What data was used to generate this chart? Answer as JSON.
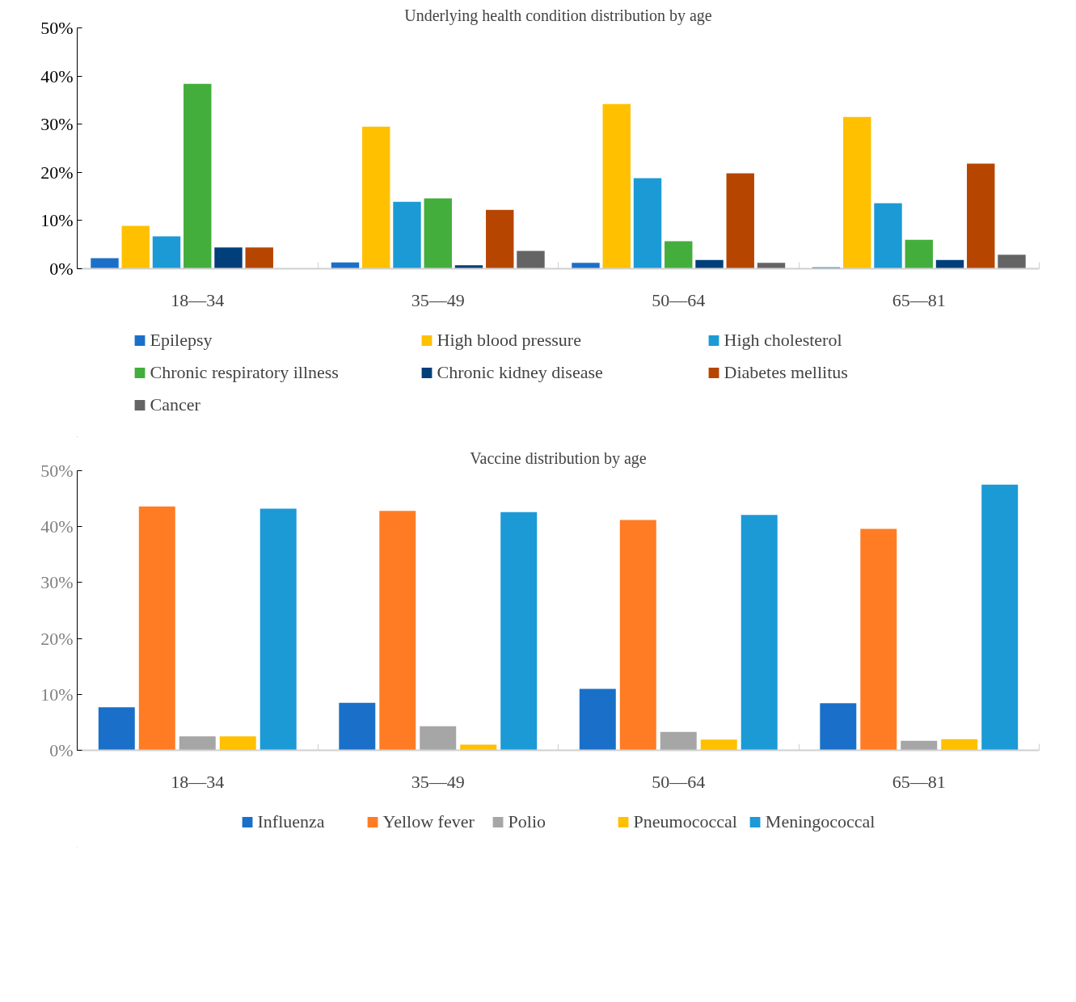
{
  "chart_data": [
    {
      "type": "bar",
      "title": "Underlying health condition distribution by age",
      "categories": [
        "18—34",
        "35—49",
        "50—64",
        "65—81"
      ],
      "ylim": [
        0,
        50
      ],
      "yticks": [
        {
          "value": 0,
          "label": "0%"
        },
        {
          "value": 10,
          "label": "10%"
        },
        {
          "value": 20,
          "label": "20%"
        },
        {
          "value": 30,
          "label": "30%"
        },
        {
          "value": 40,
          "label": "40%"
        },
        {
          "value": 50,
          "label": "50%"
        }
      ],
      "grid": false,
      "legend": "bottom",
      "series": [
        {
          "name": "Epilepsy",
          "color": "#1a70c8",
          "values": [
            2.2,
            1.3,
            1.2,
            0.3
          ]
        },
        {
          "name": "High blood pressure",
          "color": "#ffc000",
          "values": [
            8.9,
            29.5,
            34.2,
            31.5
          ]
        },
        {
          "name": "High cholesterol",
          "color": "#1b9ad6",
          "values": [
            6.7,
            13.9,
            18.8,
            13.6
          ]
        },
        {
          "name": "Chronic respiratory illness",
          "color": "#43ae3c",
          "values": [
            38.4,
            14.6,
            5.7,
            6.0
          ]
        },
        {
          "name": "Chronic kidney disease",
          "color": "#003f7a",
          "values": [
            4.4,
            0.7,
            1.8,
            1.8
          ]
        },
        {
          "name": "Diabetes mellitus",
          "color": "#b64500",
          "values": [
            4.4,
            12.2,
            19.8,
            21.8
          ]
        },
        {
          "name": "Cancer",
          "color": "#646464",
          "values": [
            0,
            3.7,
            1.2,
            2.9
          ]
        }
      ]
    },
    {
      "type": "bar",
      "title": "Vaccine distribution by age",
      "categories": [
        "18—34",
        "35—49",
        "50—64",
        "65—81"
      ],
      "ylim": [
        0,
        50
      ],
      "yticks": [
        {
          "value": 0,
          "label": "0%"
        },
        {
          "value": 10,
          "label": "10%"
        },
        {
          "value": 20,
          "label": "20%"
        },
        {
          "value": 30,
          "label": "30%"
        },
        {
          "value": 40,
          "label": "40%"
        },
        {
          "value": 50,
          "label": "50%"
        }
      ],
      "grid": false,
      "legend": "bottom",
      "series": [
        {
          "name": "Influenza",
          "color": "#1a70c8",
          "values": [
            7.7,
            8.5,
            11.0,
            8.4
          ]
        },
        {
          "name": "Yellow fever",
          "color": "#ff7c24",
          "values": [
            43.6,
            42.8,
            41.2,
            39.6
          ]
        },
        {
          "name": "Polio",
          "color": "#a6a6a6",
          "values": [
            2.5,
            4.3,
            3.3,
            1.7
          ]
        },
        {
          "name": "Pneumococcal",
          "color": "#ffc000",
          "values": [
            2.5,
            1.0,
            1.9,
            2.0
          ]
        },
        {
          "name": "Meningococcal",
          "color": "#1b9ad6",
          "values": [
            43.2,
            42.6,
            42.1,
            47.5
          ]
        }
      ]
    }
  ]
}
